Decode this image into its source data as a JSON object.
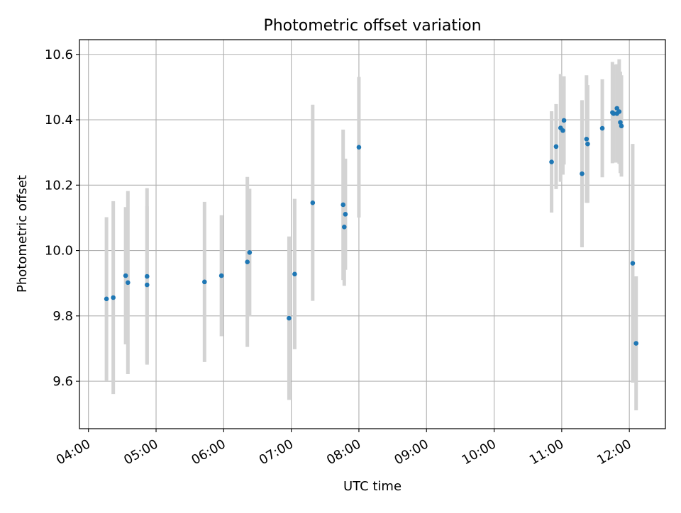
{
  "chart_data": {
    "type": "scatter",
    "title": "Photometric offset variation",
    "xlabel": "UTC time",
    "ylabel": "Photometric offset",
    "x_format": "HH:MM",
    "xlim": [
      "03:52",
      "12:32"
    ],
    "ylim": [
      9.455,
      10.645
    ],
    "grid": true,
    "x_ticks": [
      "04:00",
      "05:00",
      "06:00",
      "07:00",
      "08:00",
      "09:00",
      "10:00",
      "11:00",
      "12:00"
    ],
    "y_ticks": [
      "9.6",
      "9.8",
      "10.0",
      "10.2",
      "10.4",
      "10.6"
    ],
    "colors": {
      "point": "#1f77b4",
      "errorbar": "#d3d3d3",
      "grid": "#b0b0b0"
    },
    "points": [
      {
        "x": "04:16",
        "y": 9.852,
        "err": 0.25
      },
      {
        "x": "04:22",
        "y": 9.856,
        "err": 0.295
      },
      {
        "x": "04:33",
        "y": 9.923,
        "err": 0.21
      },
      {
        "x": "04:35",
        "y": 9.902,
        "err": 0.28
      },
      {
        "x": "04:52",
        "y": 9.921,
        "err": 0.27
      },
      {
        "x": "04:52",
        "y": 9.895,
        "err": 0.24
      },
      {
        "x": "05:43",
        "y": 9.904,
        "err": 0.245
      },
      {
        "x": "05:58",
        "y": 9.923,
        "err": 0.185
      },
      {
        "x": "06:21",
        "y": 9.965,
        "err": 0.26
      },
      {
        "x": "06:23",
        "y": 9.994,
        "err": 0.195
      },
      {
        "x": "06:58",
        "y": 9.793,
        "err": 0.25
      },
      {
        "x": "07:03",
        "y": 9.928,
        "err": 0.23
      },
      {
        "x": "07:19",
        "y": 10.146,
        "err": 0.3
      },
      {
        "x": "07:46",
        "y": 10.14,
        "err": 0.23
      },
      {
        "x": "07:47",
        "y": 10.072,
        "err": 0.18
      },
      {
        "x": "07:48",
        "y": 10.111,
        "err": 0.17
      },
      {
        "x": "08:00",
        "y": 10.316,
        "err": 0.215
      },
      {
        "x": "10:51",
        "y": 10.271,
        "err": 0.155
      },
      {
        "x": "10:55",
        "y": 10.318,
        "err": 0.13
      },
      {
        "x": "10:59",
        "y": 10.375,
        "err": 0.165
      },
      {
        "x": "11:01",
        "y": 10.367,
        "err": 0.135
      },
      {
        "x": "11:02",
        "y": 10.398,
        "err": 0.135
      },
      {
        "x": "11:18",
        "y": 10.235,
        "err": 0.225
      },
      {
        "x": "11:22",
        "y": 10.341,
        "err": 0.195
      },
      {
        "x": "11:23",
        "y": 10.326,
        "err": 0.18
      },
      {
        "x": "11:36",
        "y": 10.374,
        "err": 0.15
      },
      {
        "x": "11:45",
        "y": 10.422,
        "err": 0.155
      },
      {
        "x": "11:46",
        "y": 10.419,
        "err": 0.15
      },
      {
        "x": "11:49",
        "y": 10.435,
        "err": 0.135
      },
      {
        "x": "11:49",
        "y": 10.419,
        "err": 0.15
      },
      {
        "x": "11:51",
        "y": 10.425,
        "err": 0.16
      },
      {
        "x": "11:52",
        "y": 10.392,
        "err": 0.155
      },
      {
        "x": "11:53",
        "y": 10.381,
        "err": 0.155
      },
      {
        "x": "12:03",
        "y": 9.961,
        "err": 0.365
      },
      {
        "x": "12:06",
        "y": 9.716,
        "err": 0.205
      }
    ]
  }
}
